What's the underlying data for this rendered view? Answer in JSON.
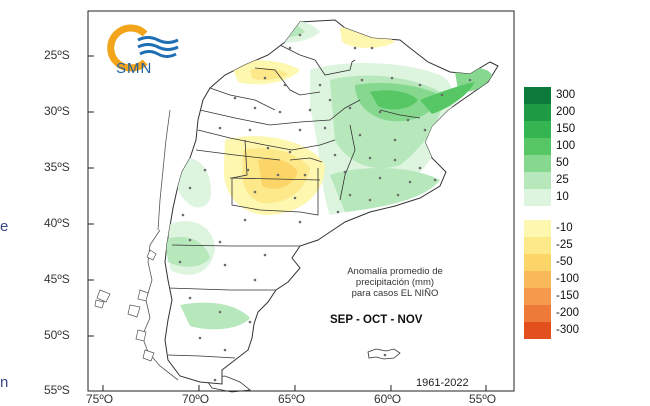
{
  "logo": {
    "text": "SMN"
  },
  "latitude_labels": [
    "25ºS",
    "30ºS",
    "35ºS",
    "40ºS",
    "45ºS",
    "50ºS",
    "55ºS"
  ],
  "longitude_labels": [
    "75ºO",
    "70ºO",
    "65ºO",
    "60ºO",
    "55ºO"
  ],
  "annotation": {
    "line1": "Anomalía promedio de",
    "line2": "precipitación (mm)",
    "line3": "para casos EL NIÑO"
  },
  "season": "SEP - OCT - NOV",
  "period": "1961-2022",
  "side_glyphs": [
    "e",
    "n"
  ],
  "legend": {
    "positive": [
      {
        "label": "300",
        "color": "#0b7a3b"
      },
      {
        "label": "200",
        "color": "#1f9a45"
      },
      {
        "label": "150",
        "color": "#35b452"
      },
      {
        "label": "100",
        "color": "#56c764"
      },
      {
        "label": "50",
        "color": "#86d88e"
      },
      {
        "label": "25",
        "color": "#b6e8bc"
      },
      {
        "label": "10",
        "color": "#ddf4df"
      }
    ],
    "negative": [
      {
        "label": "-10",
        "color": "#fdf7b0"
      },
      {
        "label": "-25",
        "color": "#fde98a"
      },
      {
        "label": "-50",
        "color": "#fcd568"
      },
      {
        "label": "-100",
        "color": "#f9b95a"
      },
      {
        "label": "-150",
        "color": "#f59a4c"
      },
      {
        "label": "-200",
        "color": "#ee7a3a"
      },
      {
        "label": "-300",
        "color": "#e3501e"
      }
    ]
  },
  "colors": {
    "land": "#ffffff",
    "border": "#333333",
    "logo_orange": "#f2a51a",
    "logo_blue": "#1f6fb5"
  }
}
